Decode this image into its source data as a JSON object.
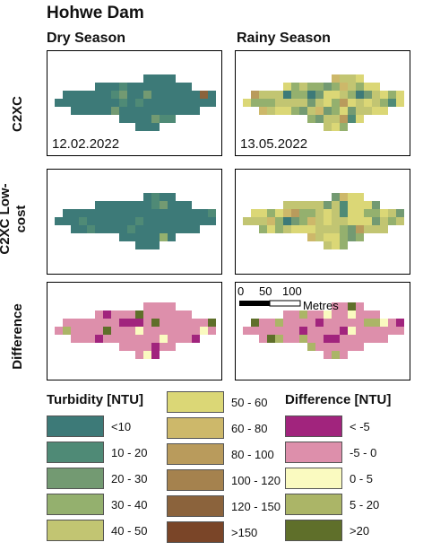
{
  "title": "Hohwe Dam",
  "columns": [
    "Dry Season",
    "Rainy Season"
  ],
  "rows": [
    "C2XC",
    "C2XC Low-cost",
    "Difference"
  ],
  "dates": {
    "dry": "12.02.2022",
    "rainy": "13.05.2022"
  },
  "scale": {
    "ticks": [
      "0",
      "50",
      "100"
    ],
    "unit": "Metres"
  },
  "turbidity_legend": {
    "title": "Turbidity [NTU]",
    "items": [
      {
        "label": "<10",
        "color": "#3d7a78"
      },
      {
        "label": "10 - 20",
        "color": "#4f8a76"
      },
      {
        "label": "20 - 30",
        "color": "#739a72"
      },
      {
        "label": "30 - 40",
        "color": "#94b06e"
      },
      {
        "label": "40 - 50",
        "color": "#c2c572"
      },
      {
        "label": "50 - 60",
        "color": "#dbd776"
      },
      {
        "label": "60 - 80",
        "color": "#cdb86a"
      },
      {
        "label": "80 - 100",
        "color": "#b99b5c"
      },
      {
        "label": "100 - 120",
        "color": "#a5824e"
      },
      {
        "label": "120 - 150",
        "color": "#8b633c"
      },
      {
        "label": ">150",
        "color": "#7a4528"
      }
    ]
  },
  "difference_legend": {
    "title": "Difference [NTU]",
    "items": [
      {
        "label": "< -5",
        "color": "#a1247d"
      },
      {
        "label": "-5 - 0",
        "color": "#dd8fab"
      },
      {
        "label": "0 - 5",
        "color": "#fafac0"
      },
      {
        "label": "5 - 20",
        "color": "#abb567"
      },
      {
        "label": ">20",
        "color": "#5f6f2a"
      }
    ]
  }
}
